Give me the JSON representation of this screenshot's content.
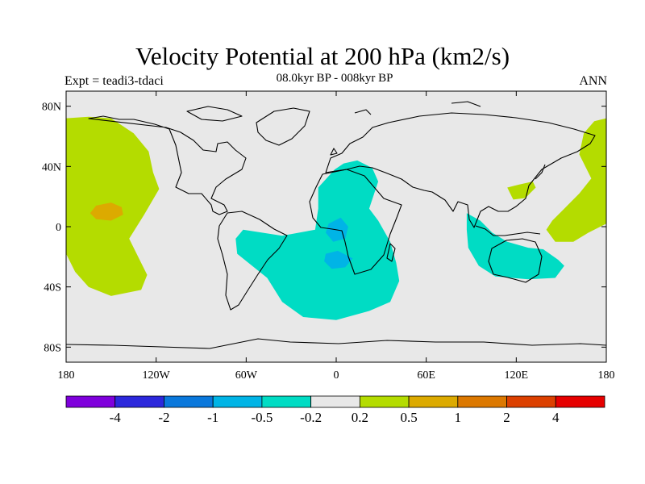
{
  "header": {
    "title": "Velocity Potential at 200 hPa (km2/s)",
    "subtitle": "08.0kyr BP - 008kyr BP",
    "left_label": "Expt = teadi3-tdaci",
    "right_label": "ANN"
  },
  "map": {
    "projection": "cylindrical-equidistant",
    "lon_range": [
      -180,
      180
    ],
    "lat_range": [
      -90,
      90
    ],
    "ocean_land_fill": "#e8e8e8",
    "y_ticks": [
      {
        "value": 80,
        "label": "80N"
      },
      {
        "value": 40,
        "label": "40N"
      },
      {
        "value": 0,
        "label": "0"
      },
      {
        "value": -40,
        "label": "40S"
      },
      {
        "value": -80,
        "label": "80S"
      }
    ],
    "x_ticks": [
      {
        "value": -180,
        "label": "180"
      },
      {
        "value": -120,
        "label": "120W"
      },
      {
        "value": -60,
        "label": "60W"
      },
      {
        "value": 0,
        "label": "0"
      },
      {
        "value": 60,
        "label": "60E"
      },
      {
        "value": 120,
        "label": "120E"
      },
      {
        "value": 180,
        "label": "180"
      }
    ]
  },
  "colorbar": {
    "colors": [
      "#7f00dc",
      "#2c28dc",
      "#0a78dc",
      "#00b4e6",
      "#00dcc4",
      "#e8e8e8",
      "#b4dc00",
      "#dcaa00",
      "#dc7800",
      "#dc4000",
      "#e60000"
    ],
    "labels": [
      "-4",
      "-2",
      "-1",
      "-0.5",
      "-0.2",
      "0.2",
      "0.5",
      "1",
      "2",
      "4"
    ]
  },
  "chart_data": {
    "type": "heatmap",
    "title": "Velocity Potential at 200 hPa (km2/s)",
    "subtitle": "08.0kyr BP - 008kyr BP",
    "levels": [
      -4,
      -2,
      -1,
      -0.5,
      -0.2,
      0.2,
      0.5,
      1,
      2,
      4
    ],
    "regions": [
      {
        "name": "",
        "level_range": [
          0.2,
          0.5
        ],
        "color": "#b4dc00",
        "polygon": [
          [
            -180,
            72
          ],
          [
            -165,
            73
          ],
          [
            -150,
            72
          ],
          [
            -135,
            62
          ],
          [
            -125,
            50
          ],
          [
            -122,
            36
          ],
          [
            -118,
            25
          ],
          [
            -128,
            8
          ],
          [
            -138,
            -8
          ],
          [
            -132,
            -20
          ],
          [
            -126,
            -32
          ],
          [
            -130,
            -42
          ],
          [
            -150,
            -46
          ],
          [
            -165,
            -40
          ],
          [
            -174,
            -30
          ],
          [
            -180,
            -18
          ]
        ]
      },
      {
        "name": "",
        "level_range": [
          0.5,
          1
        ],
        "color": "#dcaa00",
        "polygon": [
          [
            -160,
            14
          ],
          [
            -150,
            16
          ],
          [
            -143,
            13
          ],
          [
            -142,
            8
          ],
          [
            -150,
            4
          ],
          [
            -160,
            5
          ],
          [
            -164,
            9
          ]
        ]
      },
      {
        "name": "",
        "level_range": [
          -0.5,
          -0.2
        ],
        "color": "#00dcc4",
        "polygon": [
          [
            -1,
            38
          ],
          [
            5,
            42
          ],
          [
            14,
            44
          ],
          [
            24,
            39
          ],
          [
            28,
            30
          ],
          [
            22,
            12
          ],
          [
            28,
            4
          ],
          [
            36,
            -10
          ],
          [
            40,
            -24
          ],
          [
            42,
            -36
          ],
          [
            36,
            -50
          ],
          [
            22,
            -56
          ],
          [
            0,
            -62
          ],
          [
            -22,
            -60
          ],
          [
            -36,
            -50
          ],
          [
            -46,
            -34
          ],
          [
            -66,
            -18
          ],
          [
            -67,
            -8
          ],
          [
            -62,
            -2
          ],
          [
            -36,
            -6
          ],
          [
            -14,
            -2
          ],
          [
            -12,
            12
          ],
          [
            -12,
            26
          ]
        ]
      },
      {
        "name": "",
        "level_range": [
          -1,
          -0.5
        ],
        "color": "#00b4e6",
        "polygon": [
          [
            -5,
            2
          ],
          [
            3,
            6
          ],
          [
            8,
            0
          ],
          [
            6,
            -8
          ],
          [
            -2,
            -10
          ],
          [
            -7,
            -4
          ]
        ]
      },
      {
        "name": "",
        "level_range": [
          -1,
          -0.5
        ],
        "color": "#00b4e6",
        "polygon": [
          [
            -7,
            -18
          ],
          [
            1,
            -16
          ],
          [
            11,
            -21
          ],
          [
            6,
            -27
          ],
          [
            -3,
            -28
          ],
          [
            -8,
            -23
          ]
        ]
      },
      {
        "name": "",
        "level_range": [
          -0.5,
          -0.2
        ],
        "color": "#00dcc4",
        "polygon": [
          [
            87,
            9
          ],
          [
            96,
            4
          ],
          [
            104,
            -4
          ],
          [
            114,
            -10
          ],
          [
            128,
            -14
          ],
          [
            138,
            -15
          ],
          [
            148,
            -22
          ],
          [
            152,
            -26
          ],
          [
            146,
            -34
          ],
          [
            128,
            -35
          ],
          [
            106,
            -33
          ],
          [
            95,
            -26
          ],
          [
            88,
            -14
          ],
          [
            87,
            -2
          ]
        ]
      },
      {
        "name": "",
        "level_range": [
          0.2,
          0.5
        ],
        "color": "#b4dc00",
        "polygon": [
          [
            180,
            72
          ],
          [
            172,
            70
          ],
          [
            165,
            62
          ],
          [
            162,
            48
          ],
          [
            170,
            32
          ],
          [
            162,
            22
          ],
          [
            152,
            12
          ],
          [
            144,
            4
          ],
          [
            140,
            -2
          ],
          [
            146,
            -10
          ],
          [
            158,
            -10
          ],
          [
            168,
            -4
          ],
          [
            180,
            2
          ]
        ]
      },
      {
        "name": "",
        "level_range": [
          0.2,
          0.5
        ],
        "color": "#b4dc00",
        "polygon": [
          [
            114,
            26
          ],
          [
            122,
            28
          ],
          [
            131,
            30
          ],
          [
            133,
            26
          ],
          [
            126,
            19
          ],
          [
            118,
            18
          ]
        ]
      }
    ],
    "colorbar_levels": [
      -4,
      -2,
      -1,
      -0.5,
      -0.2,
      0.2,
      0.5,
      1,
      2,
      4
    ],
    "xlabel": "",
    "ylabel": ""
  }
}
